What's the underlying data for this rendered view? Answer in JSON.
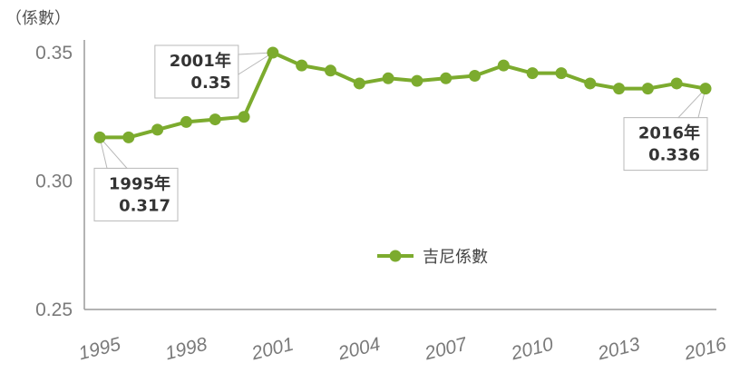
{
  "chart_data": {
    "type": "line",
    "title": "",
    "xlabel": "",
    "ylabel": "（係數）",
    "x": [
      1995,
      1996,
      1997,
      1998,
      1999,
      2000,
      2001,
      2002,
      2003,
      2004,
      2005,
      2006,
      2007,
      2008,
      2009,
      2010,
      2011,
      2012,
      2013,
      2014,
      2015,
      2016
    ],
    "series": [
      {
        "name": "吉尼係數",
        "color": "#7cab2e",
        "values": [
          0.317,
          0.317,
          0.32,
          0.323,
          0.324,
          0.325,
          0.35,
          0.345,
          0.343,
          0.338,
          0.34,
          0.339,
          0.34,
          0.341,
          0.345,
          0.342,
          0.342,
          0.338,
          0.336,
          0.336,
          0.338,
          0.336
        ]
      }
    ],
    "ylim": [
      0.25,
      0.35
    ],
    "yticks": [
      {
        "value": 0.35,
        "label": "0.35"
      },
      {
        "value": 0.3,
        "label": "0.30"
      },
      {
        "value": 0.25,
        "label": "0.25"
      }
    ],
    "xticks": [
      {
        "value": 1995,
        "label": "1995"
      },
      {
        "value": 1998,
        "label": "1998"
      },
      {
        "value": 2001,
        "label": "2001"
      },
      {
        "value": 2004,
        "label": "2004"
      },
      {
        "value": 2007,
        "label": "2007"
      },
      {
        "value": 2010,
        "label": "2010"
      },
      {
        "value": 2013,
        "label": "2013"
      },
      {
        "value": 2016,
        "label": "2016"
      }
    ],
    "annotations": [
      {
        "year": 1995,
        "line1": "1995年",
        "line2": "0.317",
        "placement": "below-right"
      },
      {
        "year": 2001,
        "line1": "2001年",
        "line2": "0.35",
        "placement": "left"
      },
      {
        "year": 2016,
        "line1": "2016年",
        "line2": "0.336",
        "placement": "below-left"
      }
    ],
    "legend": {
      "position": "center-right",
      "label": "吉尼係數"
    },
    "grid": false
  }
}
